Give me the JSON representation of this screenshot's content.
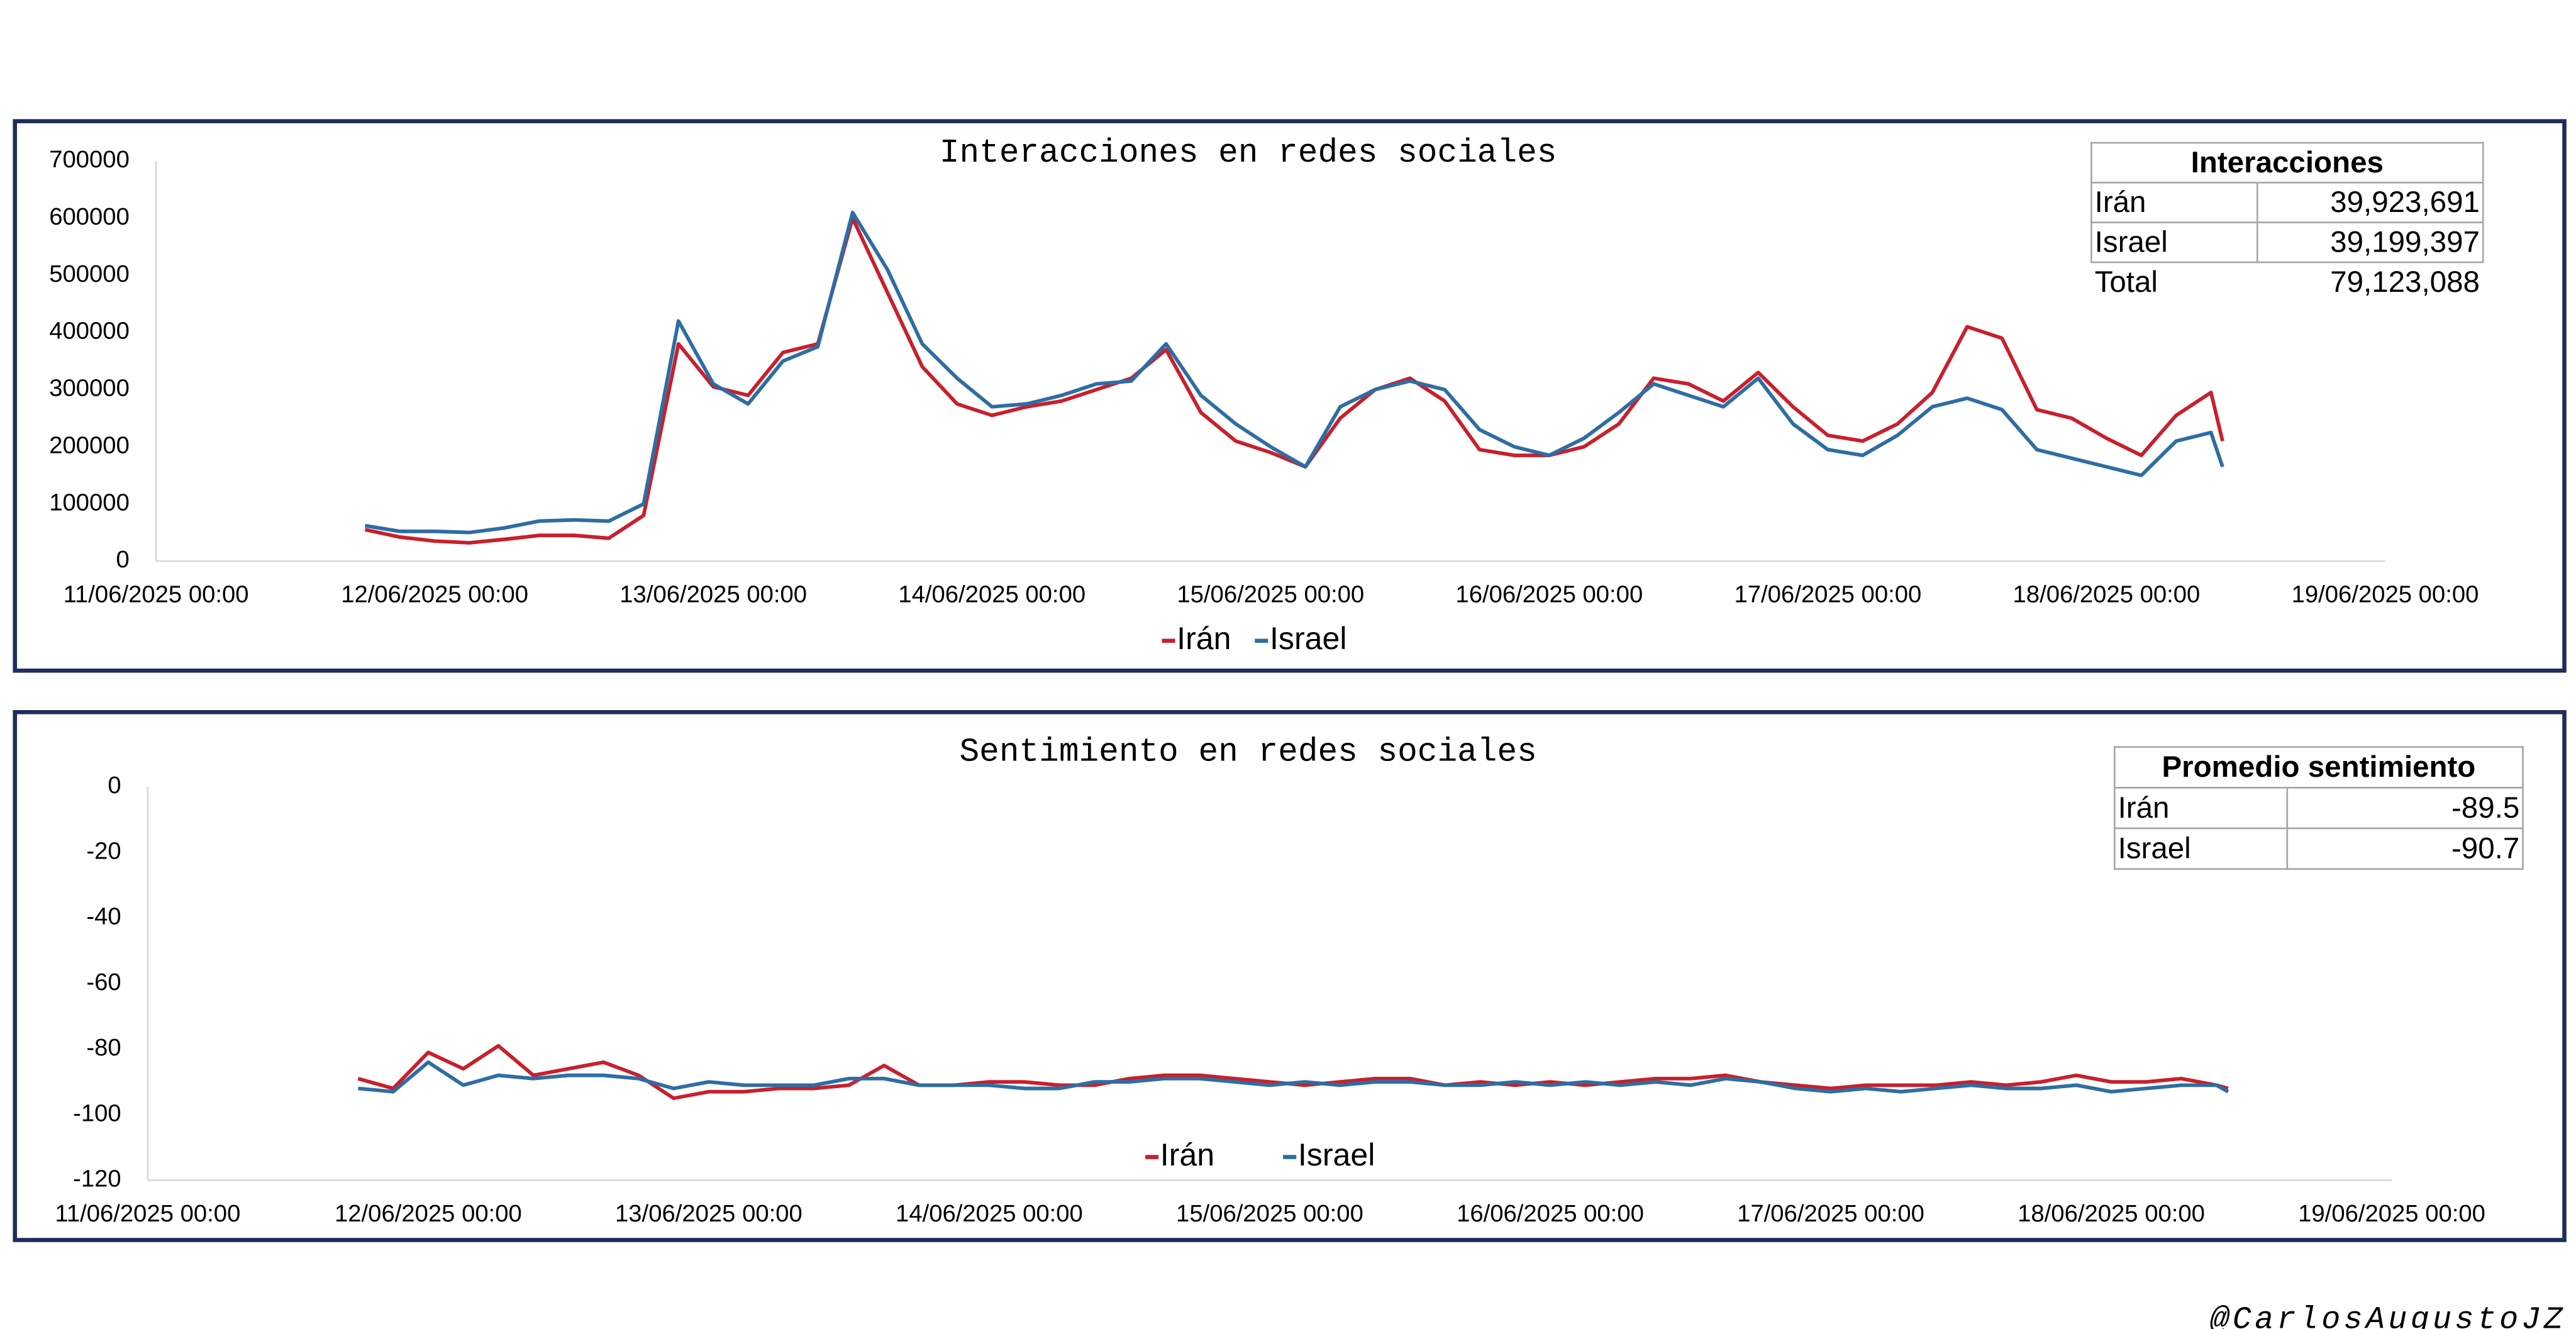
{
  "chart_data": [
    {
      "type": "line",
      "title": "Interacciones en redes sociales",
      "x": [
        "11/06/2025 18:00",
        "11/06/2025 21:00",
        "12/06/2025 00:00",
        "12/06/2025 03:00",
        "12/06/2025 06:00",
        "12/06/2025 09:00",
        "12/06/2025 12:00",
        "12/06/2025 15:00",
        "12/06/2025 18:00",
        "12/06/2025 21:00",
        "13/06/2025 00:00",
        "13/06/2025 03:00",
        "13/06/2025 06:00",
        "13/06/2025 09:00",
        "13/06/2025 12:00",
        "13/06/2025 15:00",
        "13/06/2025 18:00",
        "13/06/2025 21:00",
        "14/06/2025 00:00",
        "14/06/2025 03:00",
        "14/06/2025 06:00",
        "14/06/2025 09:00",
        "14/06/2025 12:00",
        "14/06/2025 15:00",
        "14/06/2025 18:00",
        "14/06/2025 21:00",
        "15/06/2025 00:00",
        "15/06/2025 03:00",
        "15/06/2025 06:00",
        "15/06/2025 09:00",
        "15/06/2025 12:00",
        "15/06/2025 15:00",
        "15/06/2025 18:00",
        "15/06/2025 21:00",
        "16/06/2025 00:00",
        "16/06/2025 03:00",
        "16/06/2025 06:00",
        "16/06/2025 09:00",
        "16/06/2025 12:00",
        "16/06/2025 15:00",
        "16/06/2025 18:00",
        "16/06/2025 21:00",
        "17/06/2025 00:00",
        "17/06/2025 03:00",
        "17/06/2025 06:00",
        "17/06/2025 09:00",
        "17/06/2025 12:00",
        "17/06/2025 15:00",
        "17/06/2025 18:00",
        "17/06/2025 21:00",
        "18/06/2025 00:00",
        "18/06/2025 03:00",
        "18/06/2025 06:00",
        "18/06/2025 09:00",
        "18/06/2025 10:00"
      ],
      "series": [
        {
          "name": "Irán",
          "color": "#c8202c",
          "values": [
            55000,
            42000,
            35000,
            32000,
            38000,
            45000,
            45000,
            40000,
            80000,
            380000,
            305000,
            290000,
            365000,
            380000,
            600000,
            470000,
            340000,
            275000,
            255000,
            270000,
            280000,
            300000,
            320000,
            370000,
            260000,
            210000,
            190000,
            165000,
            250000,
            300000,
            320000,
            280000,
            195000,
            185000,
            185000,
            200000,
            240000,
            320000,
            310000,
            280000,
            330000,
            270000,
            220000,
            210000,
            240000,
            295000,
            410000,
            390000,
            265000,
            250000,
            215000,
            185000,
            255000,
            295000,
            210000
          ]
        },
        {
          "name": "Israel",
          "color": "#2e6da4",
          "values": [
            62000,
            52000,
            52000,
            50000,
            58000,
            70000,
            72000,
            70000,
            100000,
            420000,
            310000,
            275000,
            350000,
            375000,
            610000,
            510000,
            380000,
            320000,
            270000,
            275000,
            290000,
            310000,
            315000,
            380000,
            290000,
            240000,
            200000,
            165000,
            270000,
            300000,
            315000,
            300000,
            230000,
            200000,
            185000,
            215000,
            260000,
            310000,
            290000,
            270000,
            320000,
            240000,
            195000,
            185000,
            220000,
            270000,
            285000,
            265000,
            195000,
            180000,
            165000,
            150000,
            210000,
            225000,
            165000
          ]
        }
      ],
      "xlim": [
        "11/06/2025 00:00",
        "19/06/2025 00:00"
      ],
      "xticks": [
        "11/06/2025 00:00",
        "12/06/2025 00:00",
        "13/06/2025 00:00",
        "14/06/2025 00:00",
        "15/06/2025 00:00",
        "16/06/2025 00:00",
        "17/06/2025 00:00",
        "18/06/2025 00:00",
        "19/06/2025 00:00"
      ],
      "ylim": [
        0,
        700000
      ],
      "yticks": [
        0,
        100000,
        200000,
        300000,
        400000,
        500000,
        600000,
        700000
      ],
      "grid": false,
      "legend": "bottom",
      "table": {
        "title": "Interacciones",
        "rows": [
          [
            "Irán",
            "39,923,691"
          ],
          [
            "Israel",
            "39,199,397"
          ],
          [
            "Total",
            "79,123,088"
          ]
        ]
      }
    },
    {
      "type": "line",
      "title": "Sentimiento en redes sociales",
      "x": [
        "11/06/2025 18:00",
        "11/06/2025 21:00",
        "12/06/2025 00:00",
        "12/06/2025 03:00",
        "12/06/2025 06:00",
        "12/06/2025 09:00",
        "12/06/2025 12:00",
        "12/06/2025 15:00",
        "12/06/2025 18:00",
        "12/06/2025 21:00",
        "13/06/2025 00:00",
        "13/06/2025 03:00",
        "13/06/2025 06:00",
        "13/06/2025 09:00",
        "13/06/2025 12:00",
        "13/06/2025 15:00",
        "13/06/2025 18:00",
        "13/06/2025 21:00",
        "14/06/2025 00:00",
        "14/06/2025 03:00",
        "14/06/2025 06:00",
        "14/06/2025 09:00",
        "14/06/2025 12:00",
        "14/06/2025 15:00",
        "14/06/2025 18:00",
        "14/06/2025 21:00",
        "15/06/2025 00:00",
        "15/06/2025 03:00",
        "15/06/2025 06:00",
        "15/06/2025 09:00",
        "15/06/2025 12:00",
        "15/06/2025 15:00",
        "15/06/2025 18:00",
        "15/06/2025 21:00",
        "16/06/2025 00:00",
        "16/06/2025 03:00",
        "16/06/2025 06:00",
        "16/06/2025 09:00",
        "16/06/2025 12:00",
        "16/06/2025 15:00",
        "16/06/2025 18:00",
        "16/06/2025 21:00",
        "17/06/2025 00:00",
        "17/06/2025 03:00",
        "17/06/2025 06:00",
        "17/06/2025 09:00",
        "17/06/2025 12:00",
        "17/06/2025 15:00",
        "17/06/2025 18:00",
        "17/06/2025 21:00",
        "18/06/2025 00:00",
        "18/06/2025 03:00",
        "18/06/2025 06:00",
        "18/06/2025 09:00",
        "18/06/2025 10:00"
      ],
      "series": [
        {
          "name": "Irán",
          "color": "#c8202c",
          "values": [
            -89,
            -92,
            -81,
            -86,
            -79,
            -88,
            -86,
            -84,
            -88,
            -95,
            -93,
            -93,
            -92,
            -92,
            -91,
            -85,
            -91,
            -91,
            -90,
            -90,
            -91,
            -91,
            -89,
            -88,
            -88,
            -89,
            -90,
            -91,
            -90,
            -89,
            -89,
            -91,
            -90,
            -91,
            -90,
            -91,
            -90,
            -89,
            -89,
            -88,
            -90,
            -91,
            -92,
            -91,
            -91,
            -91,
            -90,
            -91,
            -90,
            -88,
            -90,
            -90,
            -89,
            -91,
            -92
          ]
        },
        {
          "name": "Israel",
          "color": "#2e6da4",
          "values": [
            -92,
            -93,
            -84,
            -91,
            -88,
            -89,
            -88,
            -88,
            -89,
            -92,
            -90,
            -91,
            -91,
            -91,
            -89,
            -89,
            -91,
            -91,
            -91,
            -92,
            -92,
            -90,
            -90,
            -89,
            -89,
            -90,
            -91,
            -90,
            -91,
            -90,
            -90,
            -91,
            -91,
            -90,
            -91,
            -90,
            -91,
            -90,
            -91,
            -89,
            -90,
            -92,
            -93,
            -92,
            -93,
            -92,
            -91,
            -92,
            -92,
            -91,
            -93,
            -92,
            -91,
            -91,
            -93
          ]
        }
      ],
      "xlim": [
        "11/06/2025 00:00",
        "19/06/2025 00:00"
      ],
      "xticks": [
        "11/06/2025 00:00",
        "12/06/2025 00:00",
        "13/06/2025 00:00",
        "14/06/2025 00:00",
        "15/06/2025 00:00",
        "16/06/2025 00:00",
        "17/06/2025 00:00",
        "18/06/2025 00:00",
        "19/06/2025 00:00"
      ],
      "ylim": [
        -120,
        0
      ],
      "yticks": [
        -120,
        -100,
        -80,
        -60,
        -40,
        -20,
        0
      ],
      "grid": false,
      "legend": "bottom",
      "table": {
        "title": "Promedio sentimiento",
        "rows": [
          [
            "Irán",
            "-89.5"
          ],
          [
            "Israel",
            "-90.7"
          ]
        ]
      }
    }
  ],
  "watermark": "@CarlosAugustoJZ"
}
